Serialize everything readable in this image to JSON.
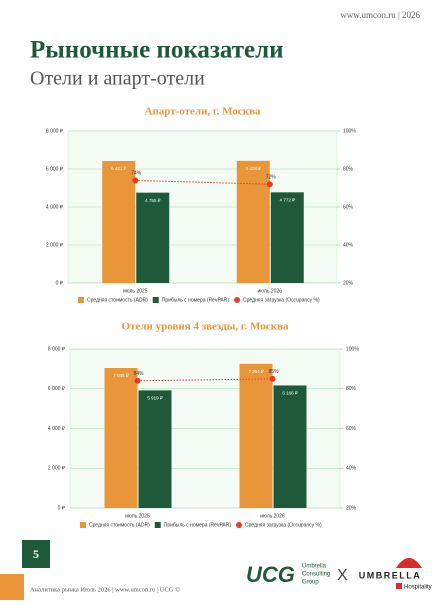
{
  "header": {
    "site": "www.umcon.ru | 2026"
  },
  "title": "Рыночные показатели",
  "subtitle": "Отели и апарт-отели",
  "chart_data": [
    {
      "type": "bar",
      "title": "Апарт-отели, г. Москва",
      "categories": [
        "июль 2025",
        "июль 2026"
      ],
      "series": [
        {
          "name": "Средняя стоимость (ADR)",
          "color": "#e9963a",
          "values": [
            6421,
            6428
          ],
          "value_labels": [
            "6 421 ₽",
            "6 428 ₽"
          ]
        },
        {
          "name": "Прибыль с номера (RevPAR)",
          "color": "#1e5a3a",
          "values": [
            4755,
            4772
          ],
          "value_labels": [
            "4 755 ₽",
            "4 772 ₽"
          ]
        },
        {
          "name": "Средняя загрузка (Occupancy %)",
          "color": "#e8392b",
          "axis": "y2",
          "values": [
            74,
            72
          ],
          "value_labels": [
            "74%",
            "72%"
          ]
        }
      ],
      "ylim": [
        0,
        8000
      ],
      "yticks": [
        {
          "value": 0,
          "label": "0 ₽"
        },
        {
          "value": 2000,
          "label": "2 000 ₽"
        },
        {
          "value": 4000,
          "label": "4 000 ₽"
        },
        {
          "value": 6000,
          "label": "6 000 ₽"
        },
        {
          "value": 8000,
          "label": "8 000 ₽"
        }
      ],
      "y2lim": [
        20,
        100
      ],
      "y2ticks": [
        {
          "value": 20,
          "label": "20%"
        },
        {
          "value": 40,
          "label": "40%"
        },
        {
          "value": 60,
          "label": "60%"
        },
        {
          "value": 80,
          "label": "80%"
        },
        {
          "value": 100,
          "label": "100%"
        }
      ],
      "grid": true
    },
    {
      "type": "bar",
      "title": "Отели уровня 4 звезды, г. Москва",
      "categories": [
        "июль 2025",
        "июль 2026"
      ],
      "series": [
        {
          "name": "Средняя стоимость (ADR)",
          "color": "#e9963a",
          "values": [
            7045,
            7254
          ],
          "value_labels": [
            "7 045 ₽",
            "7 254 ₽"
          ]
        },
        {
          "name": "Прибыль с номера (RevPAR)",
          "color": "#1e5a3a",
          "values": [
            5919,
            6166
          ],
          "value_labels": [
            "5 919 ₽",
            "6 166 ₽"
          ]
        },
        {
          "name": "Средняя загрузка (Occupancy %)",
          "color": "#e8392b",
          "axis": "y2",
          "values": [
            84,
            85
          ],
          "value_labels": [
            "84%",
            "85%"
          ]
        }
      ],
      "ylim": [
        0,
        8000
      ],
      "yticks": [
        {
          "value": 0,
          "label": "0 ₽"
        },
        {
          "value": 2000,
          "label": "2 000 ₽"
        },
        {
          "value": 4000,
          "label": "4 000 ₽"
        },
        {
          "value": 6000,
          "label": "6 000 ₽"
        },
        {
          "value": 8000,
          "label": "8 000 ₽"
        }
      ],
      "y2lim": [
        20,
        100
      ],
      "y2ticks": [
        {
          "value": 20,
          "label": "20%"
        },
        {
          "value": 40,
          "label": "40%"
        },
        {
          "value": 60,
          "label": "60%"
        },
        {
          "value": 80,
          "label": "80%"
        },
        {
          "value": 100,
          "label": "100%"
        }
      ],
      "grid": true
    }
  ],
  "page_number": "5",
  "footer": "Аналитика рынка Июль 2026 | www.umcon.ru | UCG ©",
  "logos": {
    "ucg": "UCG",
    "ucg_line1": "Umbrella",
    "ucg_line2": "Consulting",
    "ucg_line3": "Group",
    "x": "X",
    "umbrella": "UMBRELLA",
    "hospitality": "Hospitality"
  }
}
